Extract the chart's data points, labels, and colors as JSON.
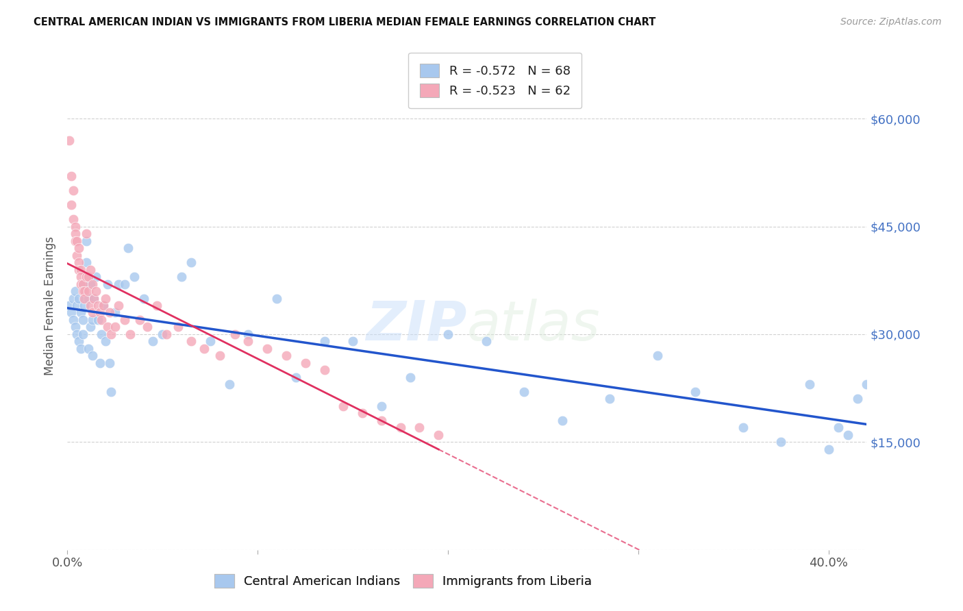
{
  "title": "CENTRAL AMERICAN INDIAN VS IMMIGRANTS FROM LIBERIA MEDIAN FEMALE EARNINGS CORRELATION CHART",
  "source": "Source: ZipAtlas.com",
  "ylabel": "Median Female Earnings",
  "yticks": [
    0,
    15000,
    30000,
    45000,
    60000
  ],
  "xlim": [
    0.0,
    0.42
  ],
  "ylim": [
    0,
    68000
  ],
  "legend_r1": "R = -0.572",
  "legend_n1": "N = 68",
  "legend_r2": "R = -0.523",
  "legend_n2": "N = 62",
  "label1": "Central American Indians",
  "label2": "Immigrants from Liberia",
  "color1": "#A8C8EE",
  "color2": "#F4A8B8",
  "line_color1": "#2255CC",
  "line_color2": "#E03060",
  "watermark_zip": "ZIP",
  "watermark_atlas": "atlas",
  "background_color": "#FFFFFF",
  "blue_x": [
    0.001,
    0.002,
    0.003,
    0.003,
    0.004,
    0.004,
    0.005,
    0.005,
    0.006,
    0.006,
    0.007,
    0.007,
    0.008,
    0.008,
    0.009,
    0.009,
    0.01,
    0.01,
    0.011,
    0.011,
    0.012,
    0.012,
    0.013,
    0.013,
    0.014,
    0.015,
    0.016,
    0.017,
    0.018,
    0.019,
    0.02,
    0.021,
    0.022,
    0.023,
    0.025,
    0.027,
    0.03,
    0.032,
    0.035,
    0.04,
    0.045,
    0.05,
    0.06,
    0.065,
    0.075,
    0.085,
    0.095,
    0.11,
    0.12,
    0.135,
    0.15,
    0.165,
    0.18,
    0.2,
    0.22,
    0.24,
    0.26,
    0.285,
    0.31,
    0.33,
    0.355,
    0.375,
    0.39,
    0.4,
    0.405,
    0.41,
    0.415,
    0.42
  ],
  "blue_y": [
    34000,
    33000,
    35000,
    32000,
    36000,
    31000,
    34000,
    30000,
    35000,
    29000,
    28000,
    33000,
    32000,
    30000,
    37000,
    34000,
    43000,
    40000,
    28000,
    35000,
    37000,
    31000,
    27000,
    32000,
    35000,
    38000,
    32000,
    26000,
    30000,
    34000,
    29000,
    37000,
    26000,
    22000,
    33000,
    37000,
    37000,
    42000,
    38000,
    35000,
    29000,
    30000,
    38000,
    40000,
    29000,
    23000,
    30000,
    35000,
    24000,
    29000,
    29000,
    20000,
    24000,
    30000,
    29000,
    22000,
    18000,
    21000,
    27000,
    22000,
    17000,
    15000,
    23000,
    14000,
    17000,
    16000,
    21000,
    23000
  ],
  "pink_x": [
    0.001,
    0.002,
    0.002,
    0.003,
    0.003,
    0.004,
    0.004,
    0.004,
    0.005,
    0.005,
    0.006,
    0.006,
    0.006,
    0.007,
    0.007,
    0.007,
    0.008,
    0.008,
    0.009,
    0.009,
    0.01,
    0.01,
    0.011,
    0.011,
    0.012,
    0.012,
    0.013,
    0.013,
    0.014,
    0.015,
    0.016,
    0.017,
    0.018,
    0.019,
    0.02,
    0.021,
    0.022,
    0.023,
    0.025,
    0.027,
    0.03,
    0.033,
    0.038,
    0.042,
    0.047,
    0.052,
    0.058,
    0.065,
    0.072,
    0.08,
    0.088,
    0.095,
    0.105,
    0.115,
    0.125,
    0.135,
    0.145,
    0.155,
    0.165,
    0.175,
    0.185,
    0.195
  ],
  "pink_y": [
    57000,
    52000,
    48000,
    46000,
    50000,
    45000,
    44000,
    43000,
    43000,
    41000,
    42000,
    40000,
    39000,
    39000,
    38000,
    37000,
    37000,
    36000,
    36000,
    35000,
    44000,
    38000,
    38000,
    36000,
    39000,
    34000,
    37000,
    33000,
    35000,
    36000,
    34000,
    33000,
    32000,
    34000,
    35000,
    31000,
    33000,
    30000,
    31000,
    34000,
    32000,
    30000,
    32000,
    31000,
    34000,
    30000,
    31000,
    29000,
    28000,
    27000,
    30000,
    29000,
    28000,
    27000,
    26000,
    25000,
    20000,
    19000,
    18000,
    17000,
    17000,
    16000
  ]
}
